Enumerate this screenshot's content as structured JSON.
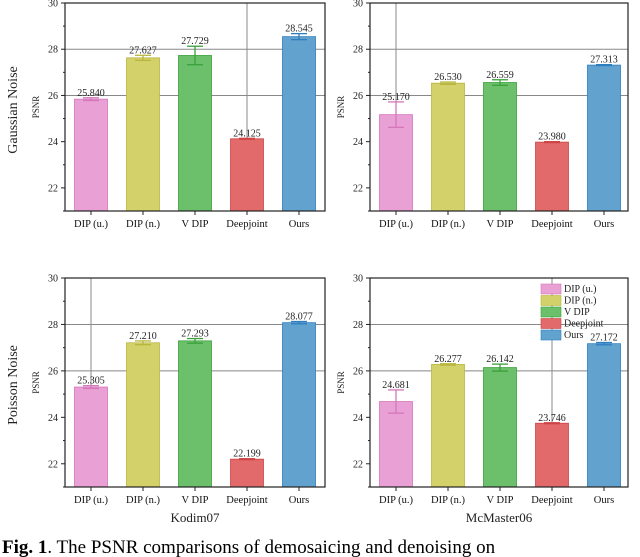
{
  "caption": {
    "prefix": "Fig. 1",
    "text": ".  The PSNR comparisons of demosaicing and denoising on"
  },
  "row_labels": [
    "Gaussian Noise",
    "Poisson Noise"
  ],
  "col_labels": [
    "Kodim07",
    "McMaster06"
  ],
  "colors": [
    "#e9a0d4",
    "#d3d16a",
    "#6cc06c",
    "#e26a6a",
    "#62a2cf"
  ],
  "edge_colors": [
    "#d677bb",
    "#b9b63f",
    "#3aa03a",
    "#cf4444",
    "#2f7fbf"
  ],
  "chart_data": [
    {
      "type": "bar",
      "ylabel": "PSNR",
      "ylim": [
        21,
        30
      ],
      "yticks": [
        22,
        24,
        26,
        28,
        30
      ],
      "grid": true,
      "categories": [
        "DIP (u.)",
        "DIP (n.)",
        "V DIP",
        "Deepjoint",
        "Ours"
      ],
      "values": [
        25.84,
        27.627,
        27.729,
        24.125,
        28.545
      ],
      "errors": [
        0.06,
        0.11,
        0.4,
        0.02,
        0.13
      ],
      "labels": [
        "25.840",
        "27.627",
        "27.729",
        "24.125",
        "28.545"
      ],
      "legend": null
    },
    {
      "type": "bar",
      "ylabel": "PSNR",
      "ylim": [
        21,
        30
      ],
      "yticks": [
        22,
        24,
        26,
        28,
        30
      ],
      "grid": true,
      "categories": [
        "DIP (u.)",
        "DIP (n.)",
        "V DIP",
        "Deepjoint",
        "Ours"
      ],
      "values": [
        25.17,
        26.53,
        26.559,
        23.98,
        27.313
      ],
      "errors": [
        0.55,
        0.05,
        0.12,
        0.02,
        0.02
      ],
      "labels": [
        "25.170",
        "26.530",
        "26.559",
        "23.980",
        "27.313"
      ],
      "legend": null
    },
    {
      "type": "bar",
      "ylabel": "PSNR",
      "ylim": [
        21,
        30
      ],
      "yticks": [
        22,
        24,
        26,
        28,
        30
      ],
      "grid": true,
      "categories": [
        "DIP (u.)",
        "DIP (n.)",
        "V DIP",
        "Deepjoint",
        "Ours"
      ],
      "values": [
        25.305,
        27.21,
        27.293,
        22.199,
        28.077
      ],
      "errors": [
        0.06,
        0.08,
        0.1,
        0.02,
        0.05
      ],
      "labels": [
        "25.305",
        "27.210",
        "27.293",
        "22.199",
        "28.077"
      ],
      "legend": null
    },
    {
      "type": "bar",
      "ylabel": "PSNR",
      "ylim": [
        21,
        30
      ],
      "yticks": [
        22,
        24,
        26,
        28,
        30
      ],
      "grid": true,
      "categories": [
        "DIP (u.)",
        "DIP (n.)",
        "V DIP",
        "Deepjoint",
        "Ours"
      ],
      "values": [
        24.681,
        26.277,
        26.142,
        23.746,
        27.172
      ],
      "errors": [
        0.5,
        0.03,
        0.15,
        0.02,
        0.05
      ],
      "labels": [
        "24.681",
        "26.277",
        "26.142",
        "23.746",
        "27.172"
      ],
      "legend": "top-right"
    }
  ]
}
